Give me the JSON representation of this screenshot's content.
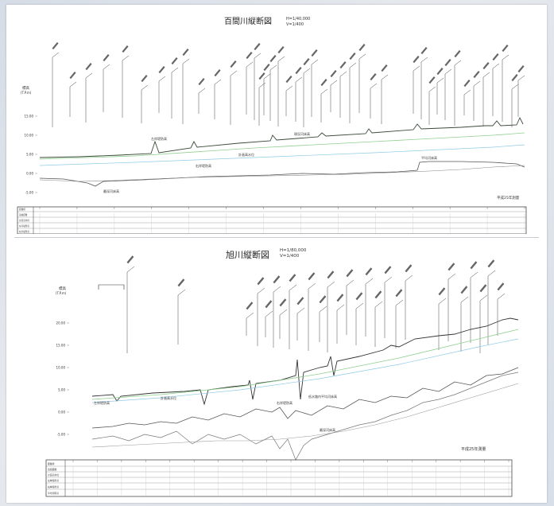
{
  "top": {
    "title": "百間川縦断図",
    "scale_h": "H=1/40,000",
    "scale_v": "V=1/400",
    "survey_note": "平成25年測量",
    "y_unit": "標高",
    "y_unit2": "(T.P.m)",
    "y_ticks": [
      "15.00",
      "10.00",
      "5.00",
      "0.00",
      "-5.00"
    ],
    "annotations": [
      "左岸堤防高",
      "右岸堤防高",
      "計画高水位",
      "現況河床高",
      "最深河床高",
      "平均河床高"
    ],
    "table_rows": [
      "距離標",
      "追加距離",
      "計画高水位",
      "左岸堤防高",
      "右岸堤防高"
    ]
  },
  "bottom": {
    "title": "旭川縦断図",
    "scale_h": "H=1/80,000",
    "scale_v": "V=1/400",
    "survey_note": "平成25年測量",
    "y_unit": "標高",
    "y_unit2": "(T.P.m)",
    "y_ticks": [
      "20.00",
      "15.00",
      "10.00",
      "5.00",
      "0.00",
      "-5.00"
    ],
    "annotations": [
      "左岸堤防高",
      "計画高水位",
      "右岸堤防高",
      "低水路内平均河床高",
      "最深河床高"
    ],
    "table_rows": [
      "距離標",
      "追加距離",
      "計画高水位",
      "左岸堤防高",
      "右岸堤防高",
      "平均河床高"
    ]
  },
  "colors": {
    "levee": "#3a4a3a",
    "plan_water": "#8fcf8f",
    "water": "#8ecae6",
    "bed": "#555555"
  }
}
